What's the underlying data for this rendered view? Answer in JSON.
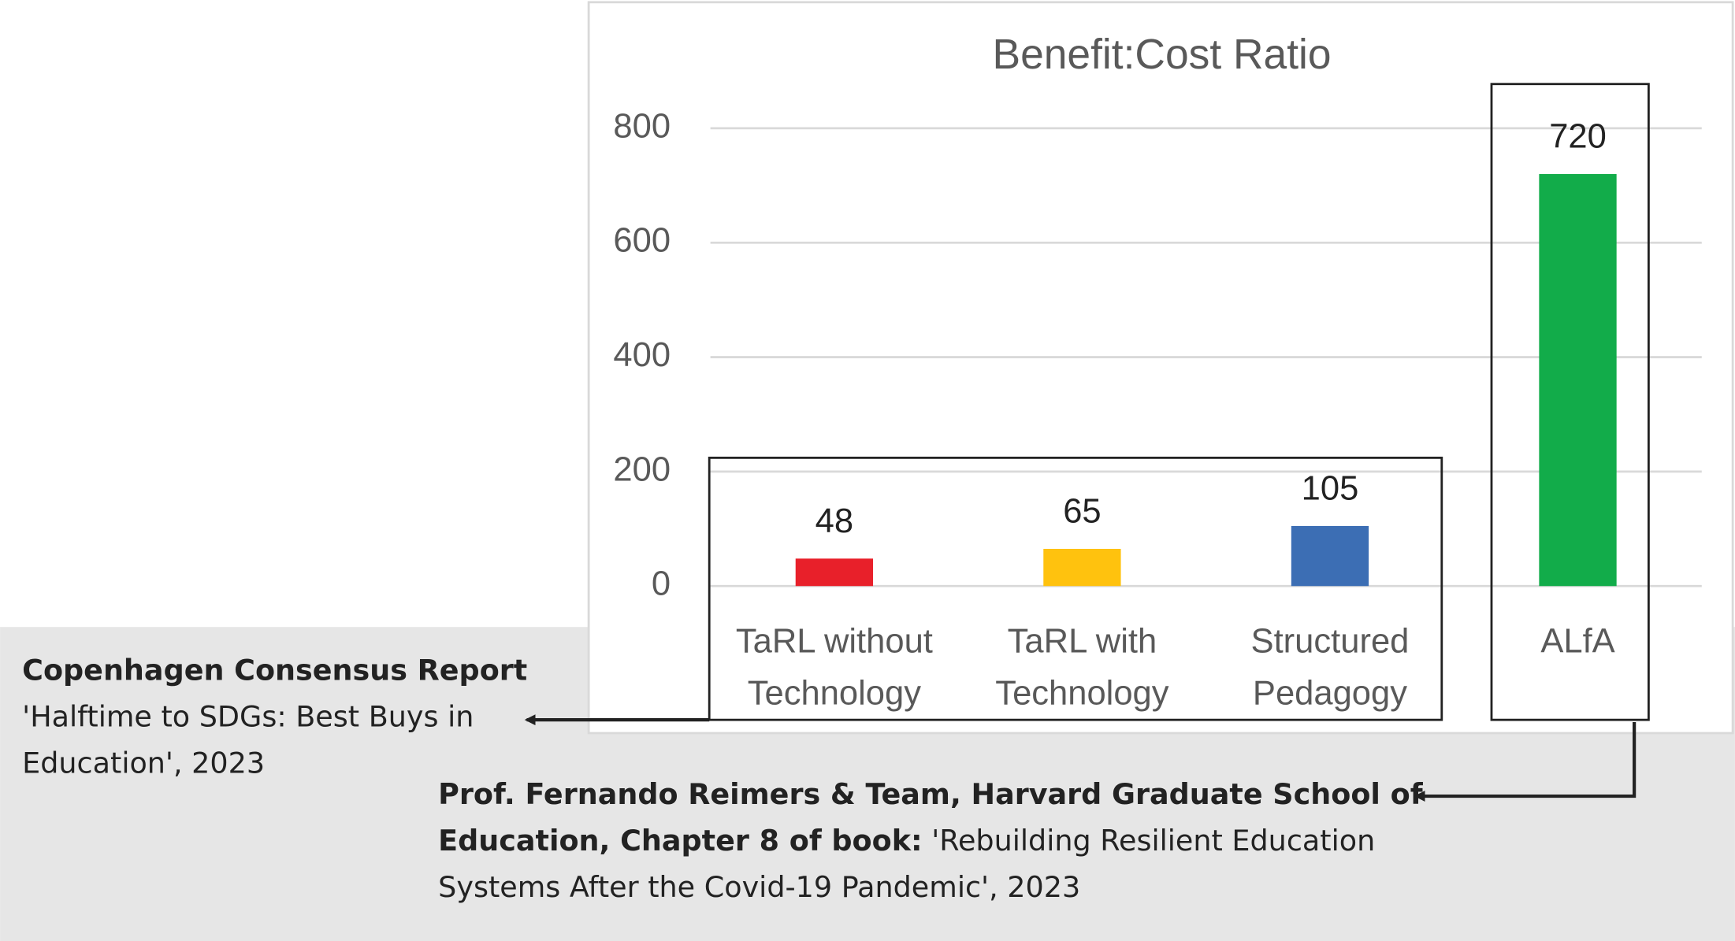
{
  "chart_data": {
    "type": "bar",
    "title": "Benefit:Cost Ratio",
    "categories": [
      "TaRL without Technology",
      "TaRL with Technology",
      "Structured Pedagogy",
      "ALfA"
    ],
    "values": [
      48,
      65,
      105,
      720
    ],
    "colors": [
      "#e8202a",
      "#ffc20e",
      "#3c6eb4",
      "#12ac4a"
    ],
    "ylim": [
      0,
      800
    ],
    "yticks": [
      0,
      200,
      400,
      600,
      800
    ],
    "grid": true
  },
  "sources": [
    {
      "bold": "Copenhagen Consensus Report",
      "text": "'Halftime to SDGs: Best Buys in Education', 2023"
    },
    {
      "bold": "Prof. Fernando Reimers & Team, Harvard Graduate School of Education, Chapter 8 of book:",
      "text": "'Rebuilding Resilient Education Systems After the Covid-19 Pandemic', 2023"
    }
  ]
}
